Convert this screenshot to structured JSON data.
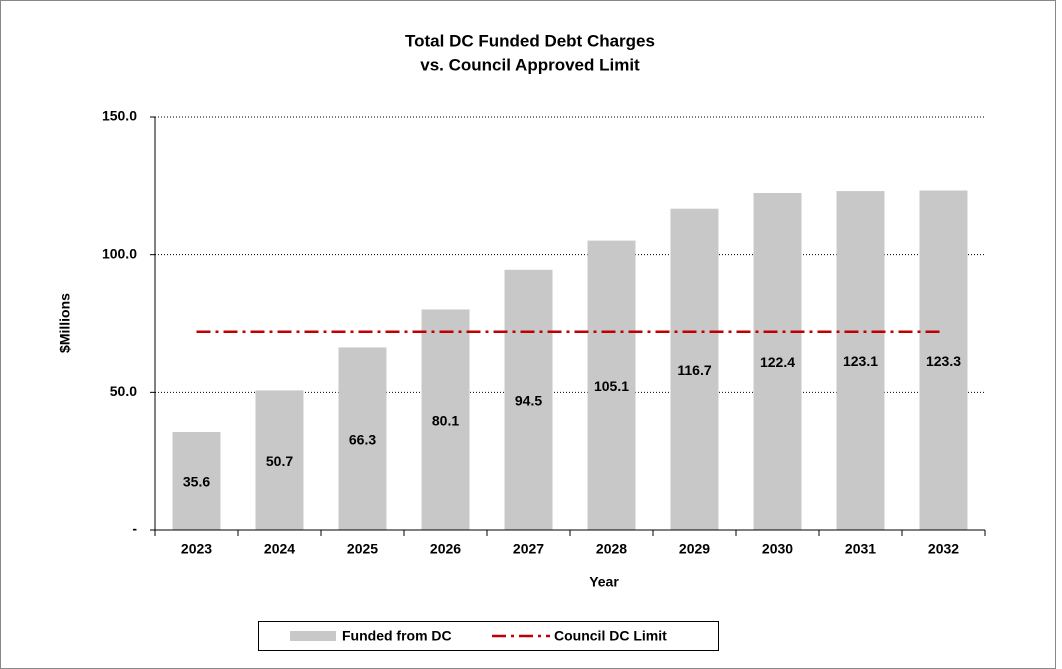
{
  "chart_data": {
    "type": "bar",
    "title": [
      "Total DC Funded Debt Charges",
      "vs. Council Approved Limit"
    ],
    "x_label": "Year",
    "y_label": "$Millions",
    "categories": [
      "2023",
      "2024",
      "2025",
      "2026",
      "2027",
      "2028",
      "2029",
      "2030",
      "2031",
      "2032"
    ],
    "series": [
      {
        "name": "Funded from DC",
        "type": "bar",
        "color": "#c8c8c8",
        "values": [
          35.6,
          50.7,
          66.3,
          80.1,
          94.5,
          105.1,
          116.7,
          122.4,
          123.1,
          123.3
        ]
      },
      {
        "name": "Council DC Limit",
        "type": "line",
        "color": "#c00000",
        "values": [
          72,
          72,
          72,
          72,
          72,
          72,
          72,
          72,
          72,
          72
        ]
      }
    ],
    "ylim": [
      0,
      150
    ],
    "yticks": [
      {
        "value": 0,
        "label": "-"
      },
      {
        "value": 50,
        "label": "50.0"
      },
      {
        "value": 100,
        "label": "100.0"
      },
      {
        "value": 150,
        "label": "150.0"
      }
    ],
    "grid": true,
    "legend": "bottom"
  }
}
